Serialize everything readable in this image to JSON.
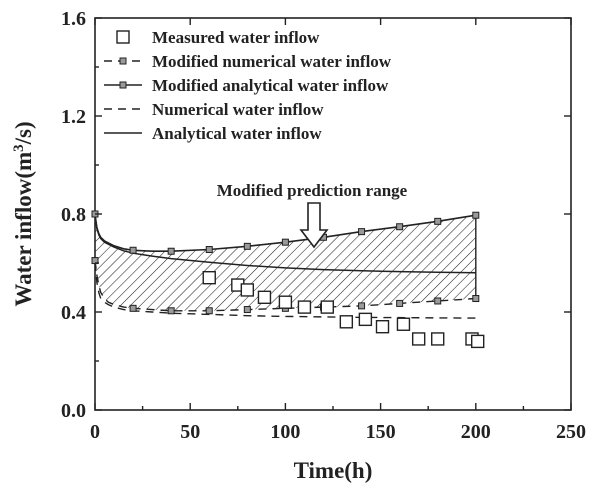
{
  "chart_data": {
    "type": "line",
    "xlabel": "Time(h)",
    "ylabel": "Water inflow(m³/s)",
    "xlim": [
      0,
      250
    ],
    "ylim": [
      0.0,
      1.6
    ],
    "x_ticks": [
      "0",
      "50",
      "100",
      "150",
      "200",
      "250"
    ],
    "y_ticks": [
      "0.0",
      "0.4",
      "0.8",
      "1.2",
      "1.6"
    ],
    "grid": false,
    "legend_position": "top-left",
    "annotation": "Modified prediction range",
    "series": [
      {
        "name": "Measured water inflow",
        "kind": "scatter",
        "marker": "open-square",
        "x": [
          60,
          75,
          80,
          89,
          100,
          110,
          122,
          132,
          142,
          151,
          162,
          170,
          180,
          198,
          201
        ],
        "y": [
          0.54,
          0.51,
          0.49,
          0.46,
          0.44,
          0.42,
          0.42,
          0.36,
          0.37,
          0.34,
          0.35,
          0.29,
          0.29,
          0.29,
          0.28
        ]
      },
      {
        "name": "Modified numerical water inflow",
        "kind": "line",
        "style": "dashed-with-square-markers",
        "x": [
          0,
          0.5,
          1,
          2,
          3,
          5,
          7,
          10,
          15,
          20,
          30,
          40,
          60,
          80,
          100,
          120,
          140,
          160,
          180,
          200
        ],
        "y": [
          0.61,
          0.58,
          0.55,
          0.51,
          0.48,
          0.455,
          0.44,
          0.43,
          0.42,
          0.415,
          0.41,
          0.405,
          0.405,
          0.41,
          0.415,
          0.42,
          0.425,
          0.435,
          0.445,
          0.455
        ],
        "marker_x": [
          0,
          20,
          40,
          60,
          80,
          100,
          120,
          140,
          160,
          180,
          200
        ]
      },
      {
        "name": "Modified analytical water inflow",
        "kind": "line",
        "style": "solid-with-square-markers",
        "x": [
          0,
          0.5,
          1,
          2,
          3,
          5,
          10,
          15,
          20,
          30,
          40,
          60,
          80,
          100,
          120,
          140,
          160,
          180,
          200
        ],
        "y": [
          0.8,
          0.77,
          0.745,
          0.72,
          0.705,
          0.69,
          0.67,
          0.658,
          0.652,
          0.648,
          0.648,
          0.655,
          0.668,
          0.685,
          0.705,
          0.728,
          0.748,
          0.77,
          0.795
        ],
        "marker_x": [
          0,
          20,
          40,
          60,
          80,
          100,
          120,
          140,
          160,
          180,
          200
        ]
      },
      {
        "name": "Numerical water inflow",
        "kind": "line",
        "style": "dashed",
        "x": [
          0,
          0.5,
          1,
          2,
          3,
          5,
          7,
          10,
          15,
          20,
          30,
          40,
          60,
          80,
          100,
          120,
          140,
          160,
          180,
          200
        ],
        "y": [
          0.6,
          0.56,
          0.52,
          0.48,
          0.455,
          0.44,
          0.43,
          0.42,
          0.41,
          0.405,
          0.4,
          0.395,
          0.39,
          0.385,
          0.382,
          0.38,
          0.378,
          0.377,
          0.376,
          0.375
        ]
      },
      {
        "name": "Analytical water inflow",
        "kind": "line",
        "style": "solid",
        "x": [
          0,
          0.5,
          1,
          2,
          3,
          5,
          10,
          15,
          20,
          30,
          40,
          60,
          80,
          100,
          120,
          140,
          160,
          180,
          200
        ],
        "y": [
          0.79,
          0.765,
          0.74,
          0.715,
          0.7,
          0.685,
          0.665,
          0.65,
          0.64,
          0.628,
          0.618,
          0.603,
          0.59,
          0.58,
          0.573,
          0.568,
          0.565,
          0.562,
          0.56
        ]
      }
    ],
    "colors": {
      "ink": "#222222",
      "marker_fill": "#9a9a9a"
    }
  }
}
